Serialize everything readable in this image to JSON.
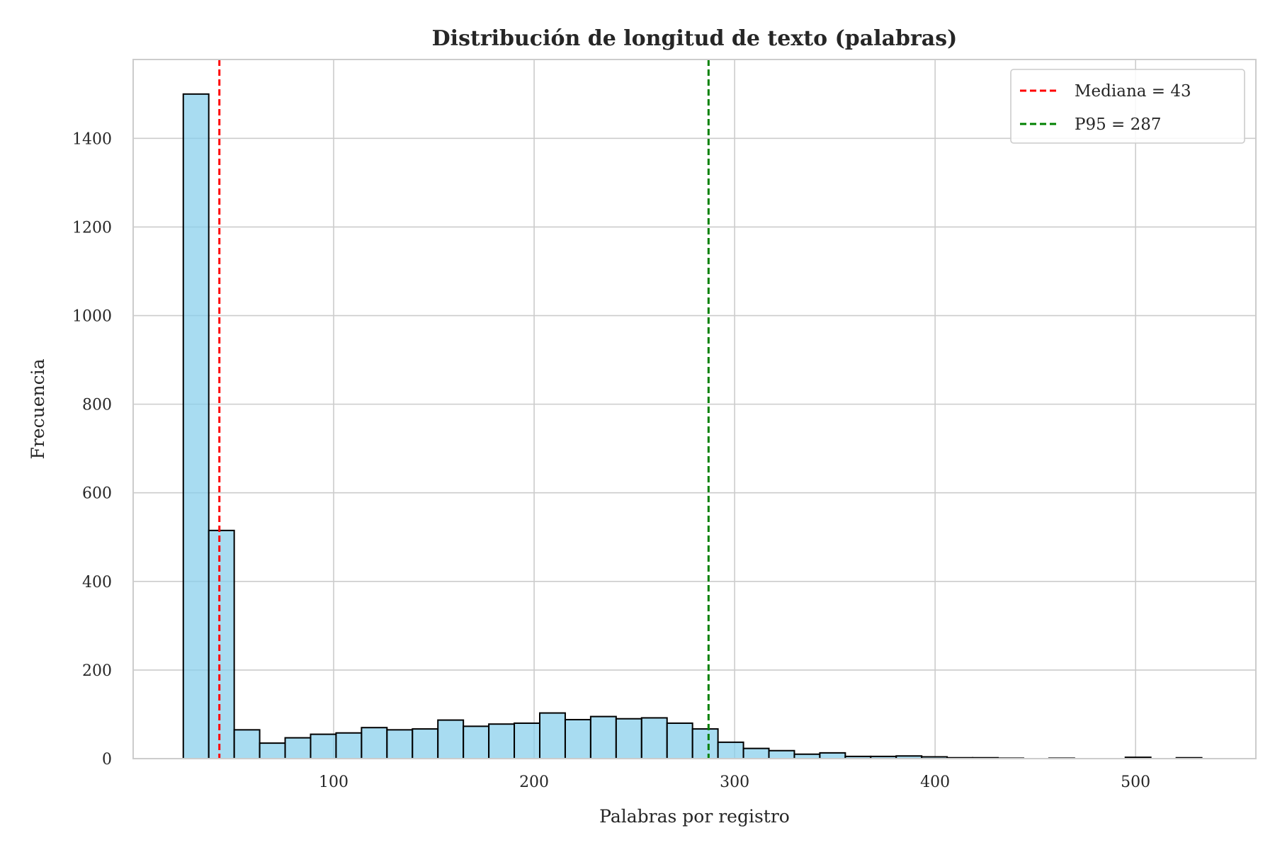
{
  "chart_data": {
    "type": "bar",
    "title": "Distribución de longitud de texto (palabras)",
    "xlabel": "Palabras por registro",
    "ylabel": "Frecuencia",
    "xlim": [
      0,
      560
    ],
    "ylim": [
      0,
      1578
    ],
    "xticks": [
      100,
      200,
      300,
      400,
      500
    ],
    "yticks": [
      0,
      200,
      400,
      600,
      800,
      1000,
      1200,
      1400
    ],
    "grid": true,
    "legend_position": "top-right",
    "bar_color": "#87ceeb",
    "bar_edge_color": "#000000",
    "bin_edges": [
      25,
      37.7,
      50.4,
      63.1,
      75.8,
      88.5,
      101.2,
      113.9,
      126.6,
      139.3,
      152,
      164.7,
      177.4,
      190.1,
      202.8,
      215.5,
      228.2,
      240.9,
      253.6,
      266.3,
      279,
      291.7,
      304.4,
      317.1,
      329.8,
      342.5,
      355.2,
      367.9,
      380.6,
      393.3,
      406,
      418.7,
      431.4,
      444.1,
      456.8,
      469.5,
      482.2,
      494.9,
      507.6,
      520.3,
      533
    ],
    "counts": [
      1500,
      515,
      65,
      35,
      47,
      55,
      58,
      70,
      65,
      67,
      87,
      73,
      78,
      80,
      103,
      88,
      95,
      90,
      92,
      80,
      67,
      37,
      23,
      18,
      10,
      13,
      5,
      5,
      6,
      4,
      2,
      2,
      1,
      0,
      1,
      0,
      0,
      3,
      0,
      2
    ],
    "reference_lines": [
      {
        "label": "Mediana = 43",
        "x": 43,
        "color": "#ff0000"
      },
      {
        "label": "P95 = 287",
        "x": 287,
        "color": "#008000"
      }
    ]
  }
}
